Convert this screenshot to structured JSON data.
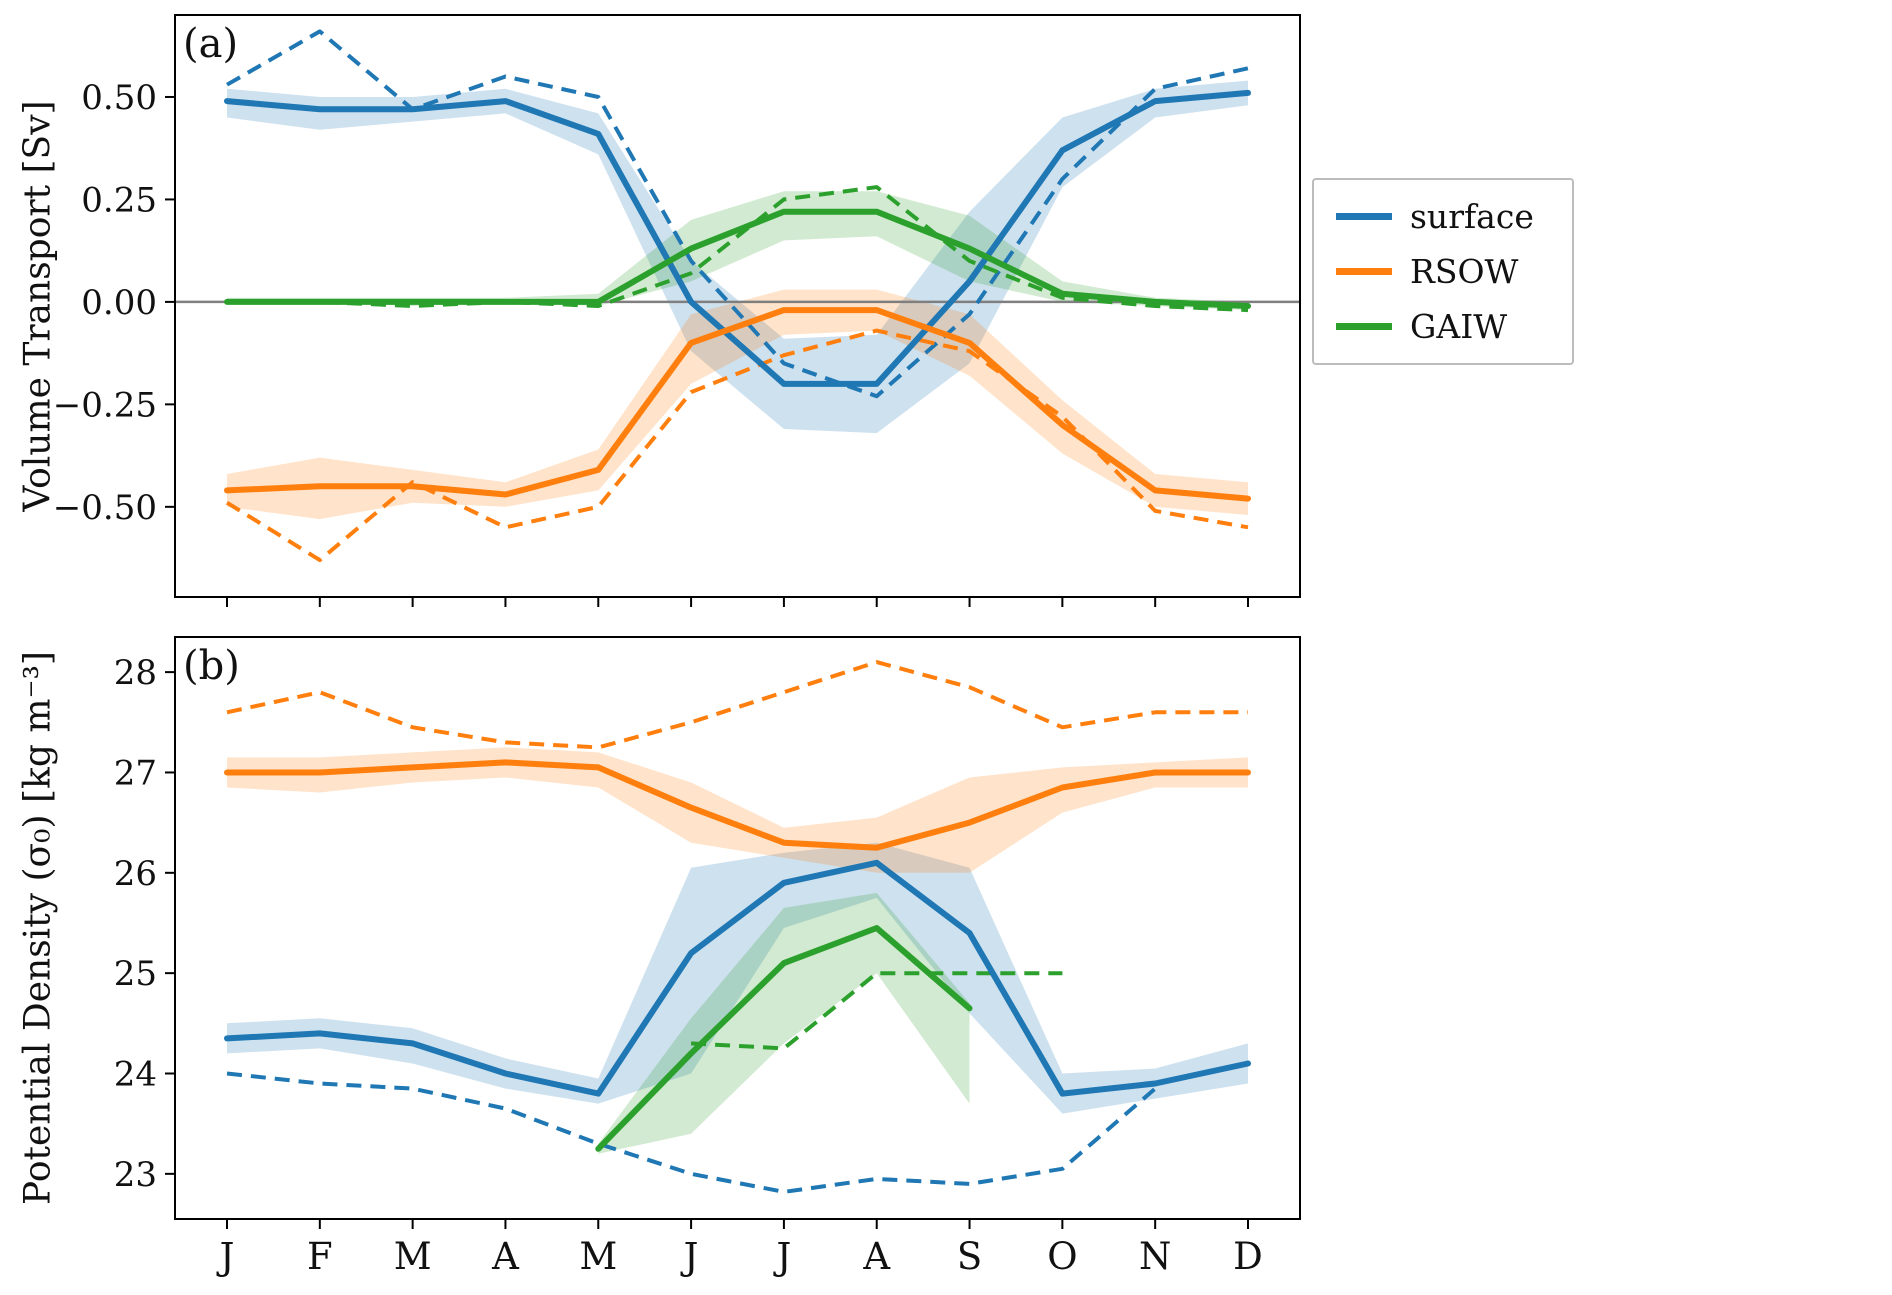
{
  "figure": {
    "panel_a_label": "(a)",
    "panel_b_label": "(b)"
  },
  "legend": {
    "items": [
      {
        "label": "surface",
        "color": "#1f77b4"
      },
      {
        "label": "RSOW",
        "color": "#ff7f0e"
      },
      {
        "label": "GAIW",
        "color": "#2ca02c"
      }
    ]
  },
  "chart_data": [
    {
      "id": "a",
      "type": "line",
      "panel_label": "(a)",
      "ylabel": "Volume Transport [Sv]",
      "legend_position": "outside right",
      "x_categories": [
        "J",
        "F",
        "M",
        "A",
        "M",
        "J",
        "J",
        "A",
        "S",
        "O",
        "N",
        "D"
      ],
      "ylim": [
        -0.72,
        0.7
      ],
      "yticks": [
        0.5,
        0.25,
        0.0,
        -0.25,
        -0.5
      ],
      "ytick_labels": [
        "0.50",
        "0.25",
        "0.00",
        "−0.25",
        "−0.50"
      ],
      "zero_line": 0.0,
      "series": [
        {
          "name": "surface",
          "color": "#1f77b4",
          "mean": [
            0.49,
            0.47,
            0.47,
            0.49,
            0.41,
            0.0,
            -0.2,
            -0.2,
            0.05,
            0.37,
            0.49,
            0.51
          ],
          "band_lower": [
            0.45,
            0.42,
            0.44,
            0.46,
            0.36,
            -0.12,
            -0.31,
            -0.32,
            -0.15,
            0.28,
            0.45,
            0.48
          ],
          "band_upper": [
            0.52,
            0.5,
            0.5,
            0.52,
            0.46,
            0.1,
            -0.09,
            -0.08,
            0.22,
            0.45,
            0.52,
            0.54
          ],
          "dashed": [
            0.53,
            0.66,
            0.47,
            0.55,
            0.5,
            0.1,
            -0.15,
            -0.23,
            -0.03,
            0.3,
            0.52,
            0.57
          ]
        },
        {
          "name": "RSOW",
          "color": "#ff7f0e",
          "mean": [
            -0.46,
            -0.45,
            -0.45,
            -0.47,
            -0.41,
            -0.1,
            -0.02,
            -0.02,
            -0.1,
            -0.3,
            -0.46,
            -0.48
          ],
          "band_lower": [
            -0.5,
            -0.53,
            -0.49,
            -0.5,
            -0.46,
            -0.2,
            -0.08,
            -0.07,
            -0.18,
            -0.37,
            -0.5,
            -0.52
          ],
          "band_upper": [
            -0.42,
            -0.38,
            -0.41,
            -0.44,
            -0.36,
            -0.03,
            0.03,
            0.03,
            -0.03,
            -0.24,
            -0.42,
            -0.44
          ],
          "dashed": [
            -0.49,
            -0.63,
            -0.44,
            -0.55,
            -0.5,
            -0.22,
            -0.13,
            -0.07,
            -0.12,
            -0.28,
            -0.51,
            -0.55
          ]
        },
        {
          "name": "GAIW",
          "color": "#2ca02c",
          "mean": [
            0.0,
            0.0,
            0.0,
            0.0,
            0.0,
            0.13,
            0.22,
            0.22,
            0.13,
            0.02,
            0.0,
            -0.01
          ],
          "band_lower": [
            0.0,
            0.0,
            -0.01,
            0.0,
            -0.01,
            0.05,
            0.15,
            0.16,
            0.05,
            0.0,
            -0.01,
            -0.02
          ],
          "band_upper": [
            0.01,
            0.01,
            0.01,
            0.01,
            0.02,
            0.2,
            0.27,
            0.27,
            0.21,
            0.05,
            0.01,
            0.0
          ],
          "dashed": [
            0.0,
            0.0,
            -0.01,
            0.0,
            -0.01,
            0.07,
            0.25,
            0.28,
            0.1,
            0.01,
            -0.01,
            -0.02
          ]
        }
      ]
    },
    {
      "id": "b",
      "type": "line",
      "panel_label": "(b)",
      "ylabel": "Potential Density (σ₀) [kg m⁻³]",
      "x_categories": [
        "J",
        "F",
        "M",
        "A",
        "M",
        "J",
        "J",
        "A",
        "S",
        "O",
        "N",
        "D"
      ],
      "ylim": [
        22.55,
        28.35
      ],
      "yticks": [
        28,
        27,
        26,
        25,
        24,
        23
      ],
      "ytick_labels": [
        "28",
        "27",
        "26",
        "25",
        "24",
        "23"
      ],
      "zero_line": null,
      "series": [
        {
          "name": "surface",
          "color": "#1f77b4",
          "mean": [
            24.35,
            24.4,
            24.3,
            24.0,
            23.8,
            25.2,
            25.9,
            26.1,
            25.4,
            23.8,
            23.9,
            24.1
          ],
          "band_lower": [
            24.2,
            24.25,
            24.1,
            23.85,
            23.7,
            24.0,
            25.45,
            25.75,
            24.6,
            23.6,
            23.75,
            23.9
          ],
          "band_upper": [
            24.5,
            24.55,
            24.45,
            24.15,
            23.95,
            26.05,
            26.2,
            26.3,
            26.05,
            24.0,
            24.05,
            24.3
          ],
          "dashed": [
            24.0,
            23.9,
            23.85,
            23.65,
            23.3,
            23.0,
            22.82,
            22.95,
            22.9,
            23.05,
            23.85,
            null
          ]
        },
        {
          "name": "RSOW",
          "color": "#ff7f0e",
          "mean": [
            27.0,
            27.0,
            27.05,
            27.1,
            27.05,
            26.65,
            26.3,
            26.25,
            26.5,
            26.85,
            27.0,
            27.0
          ],
          "band_lower": [
            26.85,
            26.8,
            26.9,
            26.95,
            26.85,
            26.3,
            26.15,
            26.0,
            26.0,
            26.6,
            26.85,
            26.85
          ],
          "band_upper": [
            27.15,
            27.15,
            27.2,
            27.25,
            27.2,
            26.9,
            26.45,
            26.55,
            26.95,
            27.05,
            27.1,
            27.15
          ],
          "dashed": [
            27.6,
            27.8,
            27.45,
            27.3,
            27.25,
            27.5,
            27.8,
            28.1,
            27.85,
            27.45,
            27.6,
            27.6
          ]
        },
        {
          "name": "GAIW",
          "color": "#2ca02c",
          "mean": [
            null,
            null,
            null,
            null,
            23.25,
            24.2,
            25.1,
            25.45,
            24.65,
            null,
            null,
            null
          ],
          "band_lower": [
            null,
            null,
            null,
            null,
            23.2,
            23.4,
            24.3,
            25.0,
            23.7,
            null,
            null,
            null
          ],
          "band_upper": [
            null,
            null,
            null,
            null,
            23.3,
            24.55,
            25.65,
            25.8,
            24.7,
            null,
            null,
            null
          ],
          "dashed": [
            null,
            null,
            null,
            null,
            null,
            24.3,
            24.25,
            25.0,
            25.0,
            25.0,
            null,
            null
          ]
        }
      ]
    }
  ]
}
